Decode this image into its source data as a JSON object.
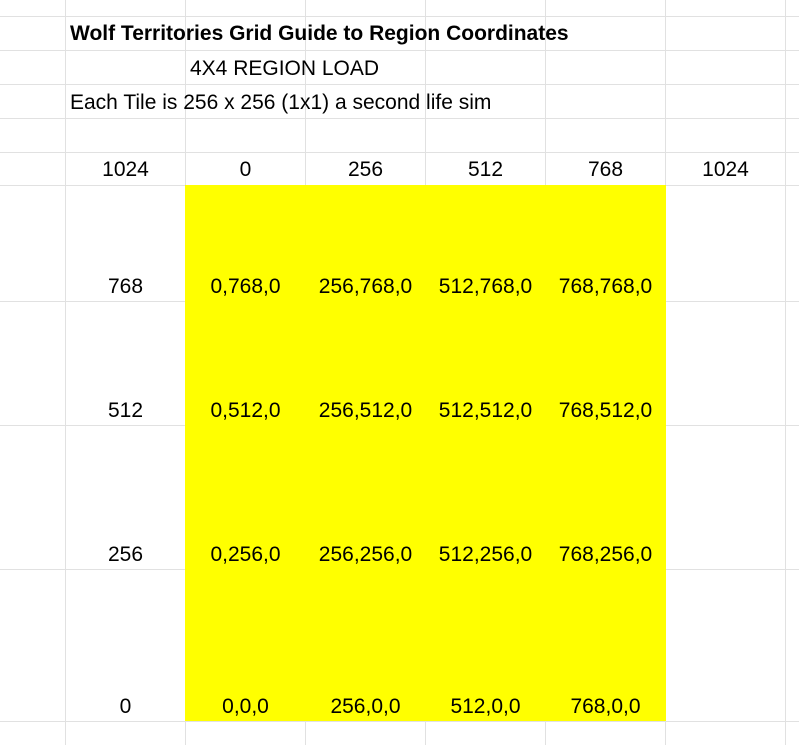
{
  "sheet": {
    "title": "Wolf Territories Grid Guide to Region Coordinates",
    "subtitle": "4X4 REGION LOAD",
    "description": "Each Tile is 256 x 256 (1x1) a second life sim",
    "fill_color": "#ffff00",
    "header_row": [
      "1024",
      "0",
      "256",
      "512",
      "768",
      "1024"
    ],
    "rows": [
      {
        "label": "768",
        "cells": [
          "0,768,0",
          "256,768,0",
          "512,768,0",
          "768,768,0"
        ]
      },
      {
        "label": "512",
        "cells": [
          "0,512,0",
          "256,512,0",
          "512,512,0",
          "768,512,0"
        ]
      },
      {
        "label": "256",
        "cells": [
          "0,256,0",
          "256,256,0",
          "512,256,0",
          "768,256,0"
        ]
      },
      {
        "label": "0",
        "cells": [
          "0,0,0",
          "256,0,0",
          "512,0,0",
          "768,0,0"
        ]
      }
    ]
  }
}
